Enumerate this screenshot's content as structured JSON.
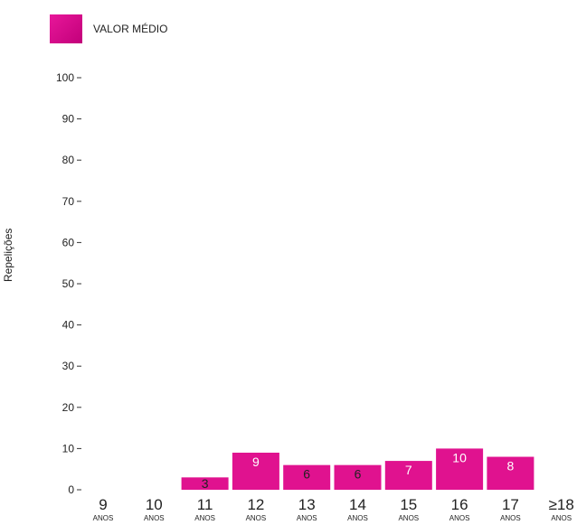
{
  "legend": {
    "label": "VALOR MÉDIO",
    "color": "#e0128f"
  },
  "chart_data": {
    "type": "bar",
    "ylabel": "Repelições",
    "ylim": [
      0,
      100
    ],
    "yticks": [
      0,
      10,
      20,
      30,
      40,
      50,
      60,
      70,
      80,
      90,
      100
    ],
    "categories": [
      "9",
      "10",
      "11",
      "12",
      "13",
      "14",
      "15",
      "16",
      "17",
      "≥18"
    ],
    "category_unit": "ANOS",
    "series": [
      {
        "name": "VALOR MÉDIO",
        "color": "#e0128f",
        "values": [
          null,
          null,
          3,
          9,
          6,
          6,
          7,
          10,
          8,
          null
        ]
      }
    ],
    "grid": false,
    "legend_position": "top-left"
  }
}
